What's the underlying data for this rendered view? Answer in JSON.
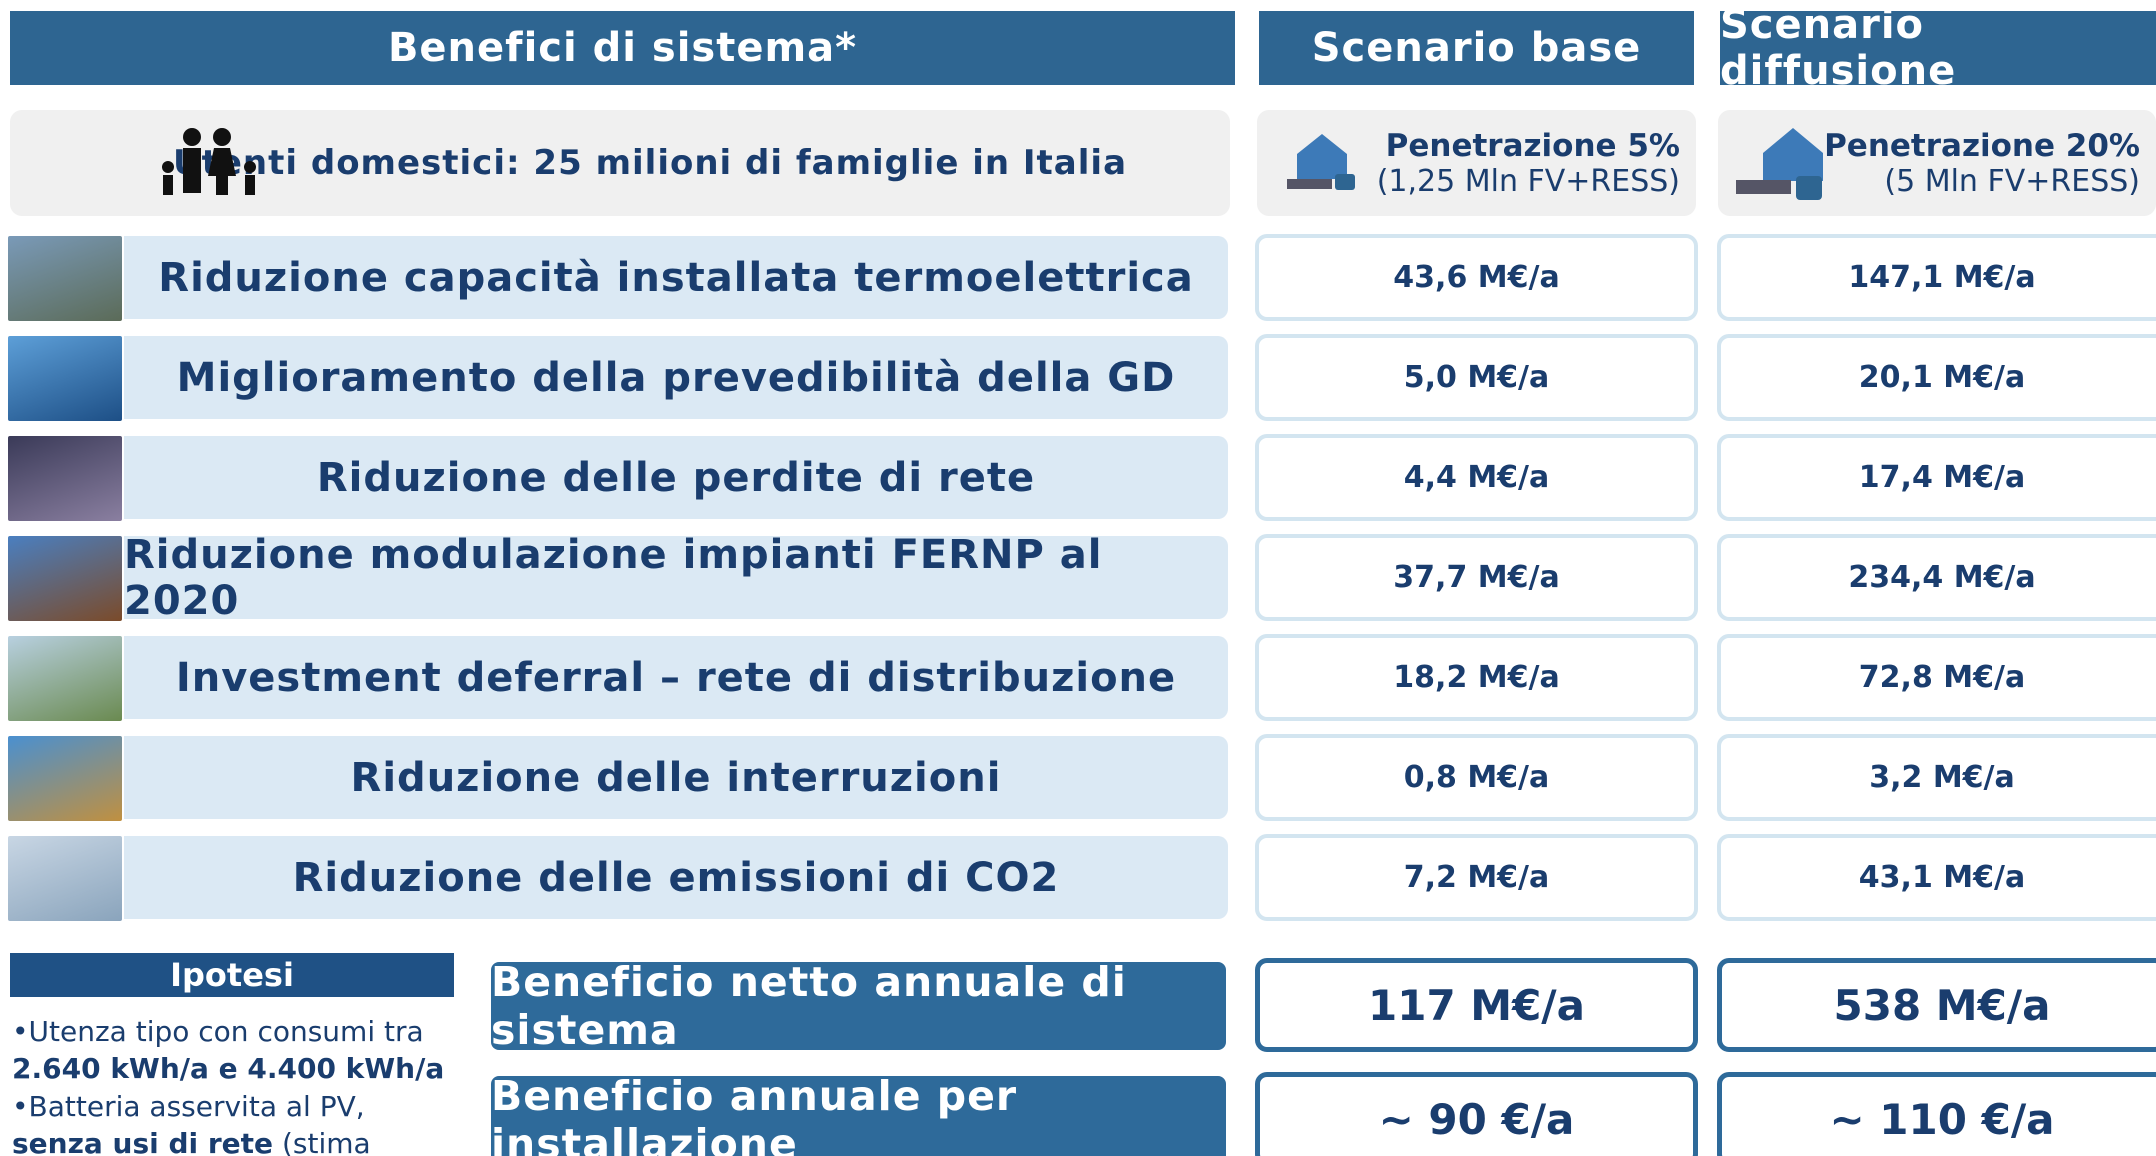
{
  "header": {
    "benefits": "Benefici di sistema*",
    "base": "Scenario base",
    "diffusion": "Scenario diffusione"
  },
  "households": {
    "label": "Utenti domestici: 25 milioni di famiglie in Italia",
    "base": {
      "penetration": "Penetrazione 5%",
      "detail": "(1,25 Mln FV+RESS)"
    },
    "diffusion": {
      "penetration": "Penetrazione 20%",
      "detail": "(5 Mln FV+RESS)"
    }
  },
  "rows": [
    {
      "label": "Riduzione capacità installata termoelettrica",
      "base": "43,6 M€/a",
      "diffusion": "147,1 M€/a"
    },
    {
      "label": "Miglioramento della prevedibilità della GD",
      "base": "5,0 M€/a",
      "diffusion": "20,1 M€/a"
    },
    {
      "label": "Riduzione delle perdite di rete",
      "base": "4,4 M€/a",
      "diffusion": "17,4 M€/a"
    },
    {
      "label": "Riduzione modulazione impianti FERNP al 2020",
      "base": "37,7 M€/a",
      "diffusion": "234,4 M€/a"
    },
    {
      "label": "Investment deferral – rete di distribuzione",
      "base": "18,2 M€/a",
      "diffusion": "72,8 M€/a"
    },
    {
      "label": "Riduzione delle interruzioni",
      "base": "0,8 M€/a",
      "diffusion": "3,2 M€/a"
    },
    {
      "label": "Riduzione delle emissioni di CO2",
      "base": "7,2 M€/a",
      "diffusion": "43,1 M€/a"
    }
  ],
  "assumptions": {
    "title": "Ipotesi",
    "items": [
      [
        {
          "text": "Utenza tipo con consumi tra "
        },
        {
          "text": "2.640 kWh/a e 4.400 kWh/a",
          "bold": true
        }
      ],
      [
        {
          "text": "Batteria asservita al PV, "
        },
        {
          "text": "senza usi di rete",
          "bold": true
        },
        {
          "text": " (stima conservativa)"
        }
      ]
    ]
  },
  "summary": [
    {
      "label": "Beneficio netto annuale di sistema",
      "base": "117 M€/a",
      "diffusion": "538 M€/a"
    },
    {
      "label": "Beneficio annuale per installazione",
      "base": "~ 90 €/a",
      "diffusion": "~ 110 €/a"
    }
  ]
}
